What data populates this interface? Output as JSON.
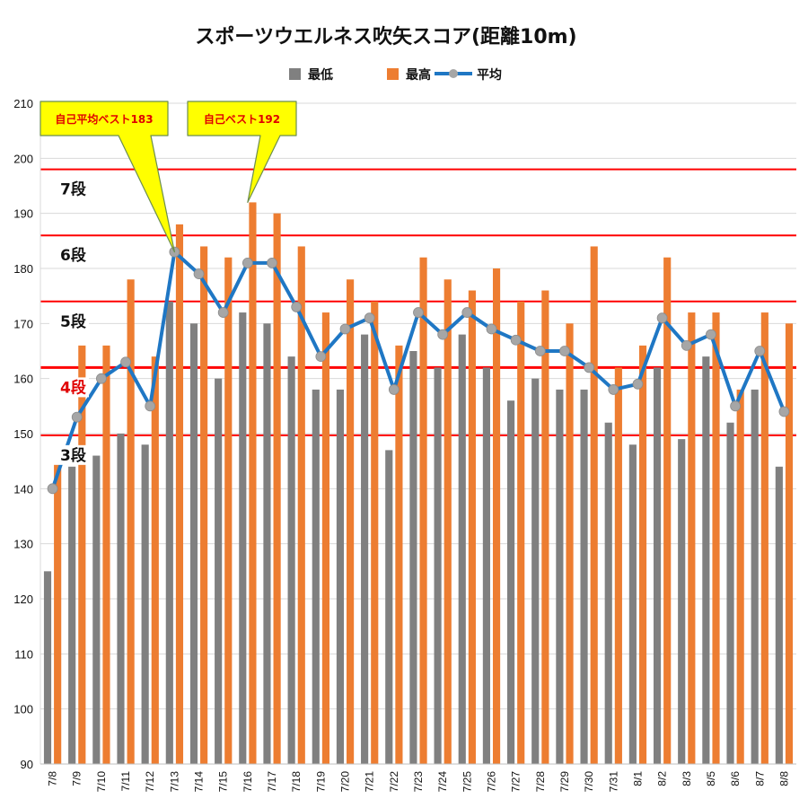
{
  "chart_data": {
    "type": "bar",
    "title": "スポーツウエルネス吹矢スコア(距離10m)",
    "categories": [
      "7/8",
      "7/9",
      "7/10",
      "7/11",
      "7/12",
      "7/13",
      "7/14",
      "7/15",
      "7/16",
      "7/17",
      "7/18",
      "7/19",
      "7/20",
      "7/21",
      "7/22",
      "7/23",
      "7/24",
      "7/25",
      "7/26",
      "7/27",
      "7/28",
      "7/29",
      "7/30",
      "7/31",
      "8/1",
      "8/2",
      "8/3",
      "8/5",
      "8/6",
      "8/7",
      "8/8"
    ],
    "series": [
      {
        "name": "最低",
        "type": "bar",
        "color": "#808080",
        "values": [
          125,
          144,
          146,
          150,
          148,
          174,
          170,
          160,
          172,
          170,
          164,
          158,
          158,
          168,
          147,
          165,
          162,
          168,
          162,
          156,
          160,
          158,
          158,
          152,
          148,
          162,
          149,
          164,
          152,
          158,
          144
        ]
      },
      {
        "name": "最高",
        "type": "bar",
        "color": "#ed7d31",
        "values": [
          146,
          166,
          166,
          178,
          164,
          188,
          184,
          182,
          192,
          190,
          184,
          172,
          178,
          174,
          166,
          182,
          178,
          176,
          180,
          174,
          176,
          170,
          184,
          162,
          166,
          182,
          172,
          172,
          158,
          172,
          170
        ]
      },
      {
        "name": "平均",
        "type": "line",
        "color": "#1f77c4",
        "marker_color": "#a6a6a6",
        "values": [
          140,
          153,
          160,
          163,
          155,
          183,
          179,
          172,
          181,
          181,
          173,
          164,
          169,
          171,
          158,
          172,
          168,
          172,
          169,
          167,
          165,
          165,
          162,
          158,
          159,
          171,
          166,
          168,
          155,
          165,
          154
        ]
      }
    ],
    "ylim": [
      90,
      210
    ],
    "yticks": [
      90,
      100,
      110,
      120,
      130,
      140,
      150,
      160,
      170,
      180,
      190,
      200,
      210
    ],
    "legend_position": "top-center",
    "rank_lines": [
      {
        "label": "7段",
        "value": 198,
        "label_color": "#111111"
      },
      {
        "label": "6段",
        "value": 186,
        "label_color": "#111111"
      },
      {
        "label": "5段",
        "value": 174,
        "label_color": "#111111"
      },
      {
        "label": "4段",
        "value": 162,
        "label_color": "#e00000",
        "thick": true
      },
      {
        "label": "3段",
        "value": 149.7,
        "label_color": "#111111"
      }
    ],
    "annotations": [
      {
        "text": "自己平均ベスト183",
        "category": "7/13",
        "value": 183
      },
      {
        "text": "自己ベスト192",
        "category": "7/16",
        "value": 192
      }
    ]
  }
}
